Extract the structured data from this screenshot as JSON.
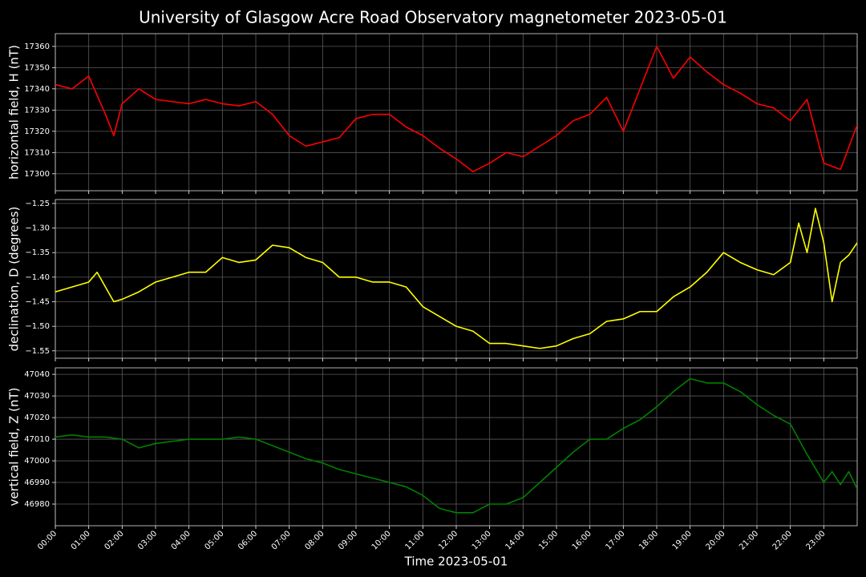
{
  "title": "University of Glasgow Acre Road Observatory magnetometer 2023-05-01",
  "x_label": "Time 2023-05-01",
  "chart_data": [
    {
      "type": "line",
      "y_label": "horizontal field, H (nT)",
      "color": "#ff0000",
      "grid": true,
      "x": [
        0,
        0.5,
        1,
        1.5,
        1.75,
        2,
        2.5,
        3,
        3.5,
        4,
        4.5,
        5,
        5.5,
        6,
        6.5,
        7,
        7.5,
        8,
        8.5,
        9,
        9.5,
        10,
        10.5,
        11,
        11.5,
        12,
        12.5,
        13,
        13.5,
        14,
        14.5,
        15,
        15.5,
        16,
        16.5,
        17,
        17.5,
        18,
        18.5,
        19,
        19.5,
        20,
        20.5,
        21,
        21.5,
        22,
        22.5,
        23,
        23.5,
        24
      ],
      "values": [
        17342,
        17340,
        17346,
        17328,
        17318,
        17333,
        17340,
        17335,
        17334,
        17333,
        17335,
        17333,
        17332,
        17334,
        17328,
        17318,
        17313,
        17315,
        17317,
        17326,
        17328,
        17328,
        17322,
        17318,
        17312,
        17307,
        17301,
        17305,
        17310,
        17308,
        17313,
        17318,
        17325,
        17328,
        17336,
        17320,
        17340,
        17360,
        17345,
        17355,
        17348,
        17342,
        17338,
        17333,
        17331,
        17325,
        17335,
        17305,
        17302,
        17323
      ],
      "xlim": [
        0,
        24
      ],
      "ylim": [
        17292,
        17366
      ],
      "yticks": [
        17300,
        17310,
        17320,
        17330,
        17340,
        17350,
        17360
      ]
    },
    {
      "type": "line",
      "y_label": "declination, D (degrees)",
      "color": "#ffff00",
      "grid": true,
      "x": [
        0,
        0.5,
        1,
        1.25,
        1.5,
        1.75,
        2,
        2.5,
        3,
        3.5,
        4,
        4.5,
        5,
        5.5,
        6,
        6.5,
        7,
        7.5,
        8,
        8.5,
        9,
        9.5,
        10,
        10.5,
        11,
        11.5,
        12,
        12.5,
        13,
        13.5,
        14,
        14.5,
        15,
        15.5,
        16,
        16.5,
        17,
        17.5,
        18,
        18.5,
        19,
        19.5,
        20,
        20.5,
        21,
        21.5,
        22,
        22.25,
        22.5,
        22.75,
        23,
        23.25,
        23.5,
        23.75,
        24
      ],
      "values": [
        -1.43,
        -1.42,
        -1.41,
        -1.39,
        -1.42,
        -1.45,
        -1.445,
        -1.43,
        -1.41,
        -1.4,
        -1.39,
        -1.39,
        -1.36,
        -1.37,
        -1.365,
        -1.335,
        -1.34,
        -1.36,
        -1.37,
        -1.4,
        -1.4,
        -1.41,
        -1.41,
        -1.42,
        -1.46,
        -1.48,
        -1.5,
        -1.51,
        -1.535,
        -1.535,
        -1.54,
        -1.545,
        -1.54,
        -1.525,
        -1.515,
        -1.49,
        -1.485,
        -1.47,
        -1.47,
        -1.44,
        -1.42,
        -1.39,
        -1.35,
        -1.37,
        -1.385,
        -1.395,
        -1.37,
        -1.29,
        -1.35,
        -1.26,
        -1.33,
        -1.45,
        -1.37,
        -1.355,
        -1.33
      ],
      "xlim": [
        0,
        24
      ],
      "ylim": [
        -1.565,
        -1.242
      ],
      "yticks": [
        {
          "value": -1.55,
          "label": "−1.55"
        },
        {
          "value": -1.5,
          "label": "−1.50"
        },
        {
          "value": -1.45,
          "label": "−1.45"
        },
        {
          "value": -1.4,
          "label": "−1.40"
        },
        {
          "value": -1.35,
          "label": "−1.35"
        },
        {
          "value": -1.3,
          "label": "−1.30"
        },
        {
          "value": -1.25,
          "label": "−1.25"
        }
      ]
    },
    {
      "type": "line",
      "y_label": "vertical field, Z (nT)",
      "color": "#008000",
      "grid": true,
      "x": [
        0,
        0.5,
        1,
        1.5,
        2,
        2.5,
        3,
        3.5,
        4,
        4.5,
        5,
        5.5,
        6,
        6.5,
        7,
        7.5,
        8,
        8.5,
        9,
        9.5,
        10,
        10.5,
        11,
        11.5,
        12,
        12.5,
        13,
        13.5,
        14,
        14.5,
        15,
        15.5,
        16,
        16.5,
        17,
        17.5,
        18,
        18.5,
        19,
        19.5,
        20,
        20.5,
        21,
        21.5,
        22,
        22.5,
        23,
        23.25,
        23.5,
        23.75,
        24
      ],
      "values": [
        47011,
        47012,
        47011,
        47011,
        47010,
        47006,
        47008,
        47009,
        47010,
        47010,
        47010,
        47011,
        47010,
        47007,
        47004,
        47001,
        46999,
        46996,
        46994,
        46992,
        46990,
        46988,
        46984,
        46978,
        46976,
        46976,
        46980,
        46980,
        46983,
        46990,
        46997,
        47004,
        47010,
        47010,
        47015,
        47019,
        47025,
        47032,
        47038,
        47036,
        47036,
        47032,
        47026,
        47021,
        47017,
        47003,
        46990,
        46995,
        46989,
        46995,
        46987
      ],
      "xlim": [
        0,
        24
      ],
      "ylim": [
        46970,
        47043
      ],
      "yticks": [
        46980,
        46990,
        47000,
        47010,
        47020,
        47030,
        47040
      ],
      "xticks": [
        {
          "value": 0,
          "label": "00:00"
        },
        {
          "value": 1,
          "label": "01:00"
        },
        {
          "value": 2,
          "label": "02:00"
        },
        {
          "value": 3,
          "label": "03:00"
        },
        {
          "value": 4,
          "label": "04:00"
        },
        {
          "value": 5,
          "label": "05:00"
        },
        {
          "value": 6,
          "label": "06:00"
        },
        {
          "value": 7,
          "label": "07:00"
        },
        {
          "value": 8,
          "label": "08:00"
        },
        {
          "value": 9,
          "label": "09:00"
        },
        {
          "value": 10,
          "label": "10:00"
        },
        {
          "value": 11,
          "label": "11:00"
        },
        {
          "value": 12,
          "label": "12:00"
        },
        {
          "value": 13,
          "label": "13:00"
        },
        {
          "value": 14,
          "label": "14:00"
        },
        {
          "value": 15,
          "label": "15:00"
        },
        {
          "value": 16,
          "label": "16:00"
        },
        {
          "value": 17,
          "label": "17:00"
        },
        {
          "value": 18,
          "label": "18:00"
        },
        {
          "value": 19,
          "label": "19:00"
        },
        {
          "value": 20,
          "label": "20:00"
        },
        {
          "value": 21,
          "label": "21:00"
        },
        {
          "value": 22,
          "label": "22:00"
        },
        {
          "value": 23,
          "label": "23:00"
        }
      ]
    }
  ]
}
